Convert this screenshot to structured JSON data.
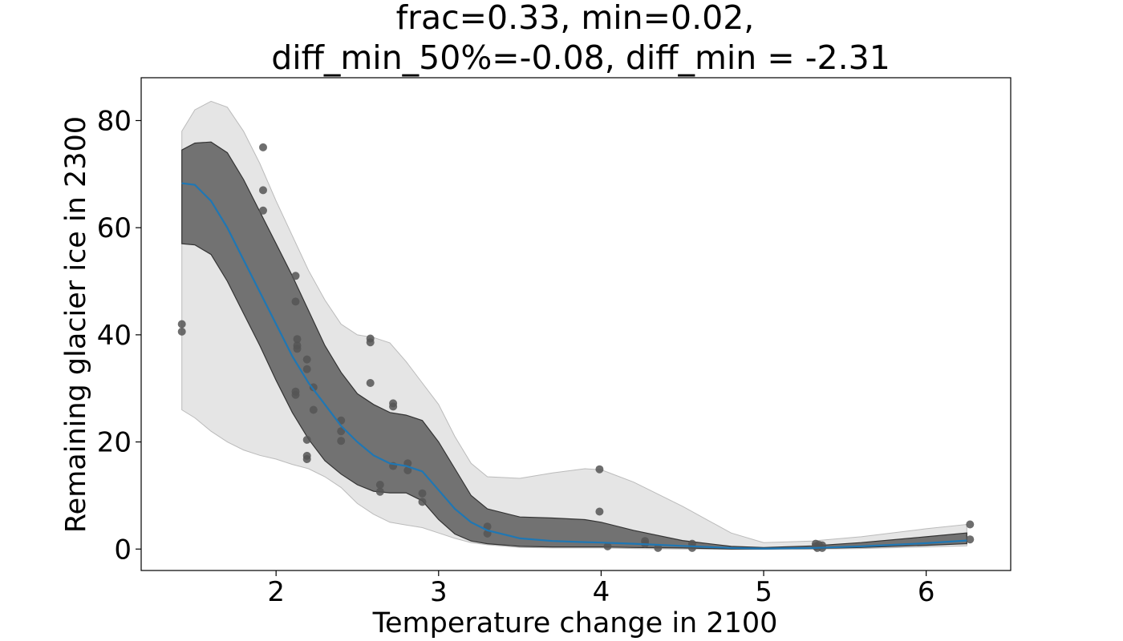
{
  "chart_data": {
    "type": "scatter",
    "title_lines": [
      "frac=0.33, min=0.02,",
      "diff_min_50%=-0.08, diff_min = -2.31"
    ],
    "xlabel": "Temperature change in 2100",
    "ylabel": "Remaining glacier ice in 2300",
    "xlim": [
      1.17,
      6.52
    ],
    "ylim": [
      -4,
      88
    ],
    "xticks": [
      2,
      3,
      4,
      5,
      6
    ],
    "yticks": [
      0,
      20,
      40,
      60,
      80
    ],
    "grid": false,
    "legend": "none",
    "colors": {
      "points": "#555555",
      "median_line": "#1f77b4",
      "inner_band": "#555555",
      "outer_band": "#cccccc"
    },
    "points": [
      {
        "x": 1.42,
        "y": 42.0
      },
      {
        "x": 1.42,
        "y": 40.6
      },
      {
        "x": 1.92,
        "y": 75.0
      },
      {
        "x": 1.92,
        "y": 67.0
      },
      {
        "x": 1.92,
        "y": 63.2
      },
      {
        "x": 2.12,
        "y": 51.0
      },
      {
        "x": 2.12,
        "y": 46.2
      },
      {
        "x": 2.13,
        "y": 39.2
      },
      {
        "x": 2.13,
        "y": 38.0
      },
      {
        "x": 2.13,
        "y": 37.4
      },
      {
        "x": 2.12,
        "y": 29.4
      },
      {
        "x": 2.12,
        "y": 28.8
      },
      {
        "x": 2.19,
        "y": 35.4
      },
      {
        "x": 2.19,
        "y": 33.6
      },
      {
        "x": 2.19,
        "y": 20.4
      },
      {
        "x": 2.19,
        "y": 17.4
      },
      {
        "x": 2.19,
        "y": 16.8
      },
      {
        "x": 2.23,
        "y": 30.2
      },
      {
        "x": 2.23,
        "y": 26.0
      },
      {
        "x": 2.4,
        "y": 24.0
      },
      {
        "x": 2.4,
        "y": 22.0
      },
      {
        "x": 2.4,
        "y": 20.2
      },
      {
        "x": 2.58,
        "y": 39.3
      },
      {
        "x": 2.58,
        "y": 38.6
      },
      {
        "x": 2.58,
        "y": 31.0
      },
      {
        "x": 2.64,
        "y": 12.0
      },
      {
        "x": 2.64,
        "y": 10.7
      },
      {
        "x": 2.72,
        "y": 27.2
      },
      {
        "x": 2.72,
        "y": 26.6
      },
      {
        "x": 2.72,
        "y": 15.5
      },
      {
        "x": 2.81,
        "y": 16.0
      },
      {
        "x": 2.81,
        "y": 14.7
      },
      {
        "x": 2.9,
        "y": 10.4
      },
      {
        "x": 2.9,
        "y": 8.8
      },
      {
        "x": 3.3,
        "y": 4.2
      },
      {
        "x": 3.3,
        "y": 2.9
      },
      {
        "x": 3.99,
        "y": 14.9
      },
      {
        "x": 3.99,
        "y": 7.0
      },
      {
        "x": 4.04,
        "y": 0.5
      },
      {
        "x": 4.27,
        "y": 1.5
      },
      {
        "x": 4.27,
        "y": 1.0
      },
      {
        "x": 4.35,
        "y": 0.2
      },
      {
        "x": 4.56,
        "y": 1.0
      },
      {
        "x": 4.56,
        "y": 0.2
      },
      {
        "x": 5.32,
        "y": 1.0
      },
      {
        "x": 5.32,
        "y": 0.5
      },
      {
        "x": 5.33,
        "y": 0.2
      },
      {
        "x": 5.34,
        "y": 0.8
      },
      {
        "x": 5.36,
        "y": 0.2
      },
      {
        "x": 5.36,
        "y": 0.7
      },
      {
        "x": 6.27,
        "y": 4.6
      },
      {
        "x": 6.27,
        "y": 1.8
      }
    ],
    "median": {
      "x": [
        1.42,
        1.5,
        1.6,
        1.7,
        1.8,
        1.9,
        2.0,
        2.1,
        2.2,
        2.3,
        2.4,
        2.5,
        2.6,
        2.7,
        2.8,
        2.9,
        3.0,
        3.1,
        3.2,
        3.3,
        3.5,
        3.7,
        3.9,
        4.0,
        4.2,
        4.5,
        4.8,
        5.0,
        5.3,
        5.6,
        6.0,
        6.25
      ],
      "y": [
        68.3,
        68.0,
        65.0,
        60.0,
        54.0,
        48.0,
        42.0,
        36.0,
        31.0,
        27.0,
        23.0,
        20.0,
        17.5,
        16.0,
        15.5,
        14.5,
        11.0,
        7.5,
        5.0,
        3.5,
        2.0,
        1.5,
        1.3,
        1.2,
        1.0,
        0.6,
        0.2,
        0.1,
        0.2,
        0.5,
        1.1,
        1.6
      ]
    },
    "inner_band": {
      "x": [
        1.42,
        1.5,
        1.6,
        1.7,
        1.8,
        1.9,
        2.0,
        2.1,
        2.2,
        2.3,
        2.4,
        2.5,
        2.6,
        2.7,
        2.8,
        2.9,
        3.0,
        3.1,
        3.2,
        3.3,
        3.5,
        3.7,
        3.9,
        4.0,
        4.2,
        4.5,
        4.8,
        5.0,
        5.3,
        5.6,
        6.0,
        6.25
      ],
      "upper": [
        74.5,
        75.8,
        76.0,
        74.0,
        69.0,
        63.0,
        57.0,
        51.0,
        44.5,
        38.0,
        33.0,
        29.0,
        27.0,
        25.5,
        25.0,
        24.0,
        20.0,
        15.0,
        10.0,
        7.5,
        6.0,
        5.8,
        5.5,
        5.0,
        3.5,
        1.6,
        0.5,
        0.3,
        0.6,
        1.2,
        2.3,
        3.0
      ],
      "lower": [
        57.0,
        56.8,
        55.0,
        50.0,
        44.0,
        38.0,
        31.5,
        25.5,
        20.5,
        16.5,
        14.0,
        12.0,
        10.8,
        10.5,
        10.5,
        9.0,
        5.5,
        2.8,
        1.5,
        1.0,
        0.5,
        0.4,
        0.4,
        0.4,
        0.3,
        0.2,
        0.0,
        0.0,
        0.1,
        0.3,
        0.7,
        1.0
      ]
    },
    "outer_band": {
      "x": [
        1.42,
        1.5,
        1.6,
        1.7,
        1.8,
        1.9,
        2.0,
        2.1,
        2.2,
        2.3,
        2.4,
        2.5,
        2.6,
        2.7,
        2.8,
        2.9,
        3.0,
        3.1,
        3.2,
        3.3,
        3.5,
        3.7,
        3.9,
        4.0,
        4.2,
        4.5,
        4.8,
        5.0,
        5.3,
        5.6,
        6.0,
        6.25
      ],
      "upper": [
        78.0,
        82.0,
        83.6,
        82.5,
        78.0,
        72.0,
        65.0,
        58.5,
        52.0,
        46.5,
        42.0,
        40.0,
        39.5,
        38.5,
        35.0,
        31.0,
        27.0,
        21.0,
        16.0,
        13.5,
        13.2,
        14.2,
        15.0,
        14.8,
        12.5,
        8.0,
        3.0,
        1.2,
        1.5,
        2.3,
        3.8,
        4.6
      ],
      "lower": [
        26.0,
        24.5,
        22.0,
        20.0,
        18.5,
        17.5,
        16.8,
        15.8,
        15.0,
        13.5,
        11.5,
        8.5,
        6.5,
        5.0,
        4.5,
        4.0,
        3.0,
        2.0,
        1.2,
        0.8,
        0.3,
        0.2,
        0.2,
        0.2,
        0.1,
        0.0,
        0.0,
        0.0,
        0.0,
        0.1,
        0.4,
        0.6
      ]
    }
  }
}
